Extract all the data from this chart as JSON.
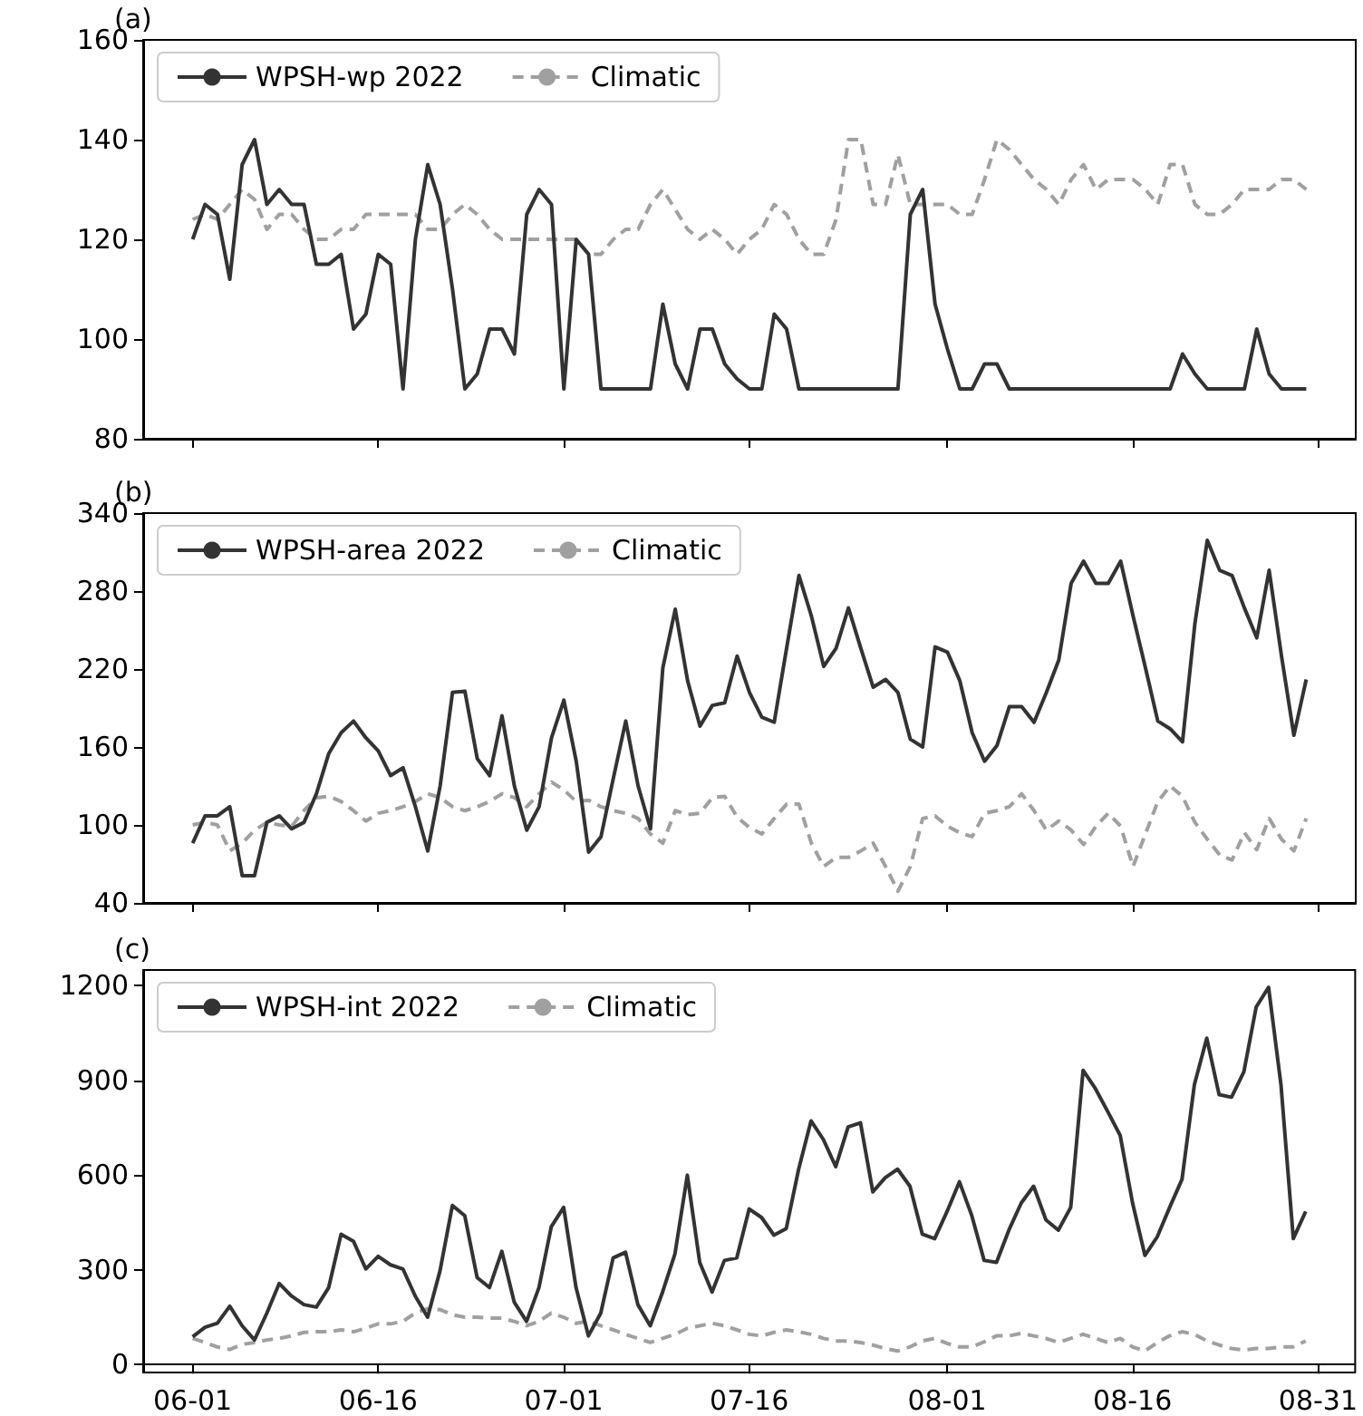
{
  "chart_data": [
    {
      "type": "line",
      "title": "(a)",
      "legend": "top left",
      "tick_labels": "y",
      "x": [
        "--06-01",
        "--06-02",
        "--06-03",
        "--06-04",
        "--06-05",
        "--06-06",
        "--06-07",
        "--06-08",
        "--06-09",
        "--06-10",
        "--06-11",
        "--06-12",
        "--06-13",
        "--06-14",
        "--06-15",
        "--06-16",
        "--06-17",
        "--06-18",
        "--06-19",
        "--06-20",
        "--06-21",
        "--06-22",
        "--06-23",
        "--06-24",
        "--06-25",
        "--06-26",
        "--06-27",
        "--06-28",
        "--06-29",
        "--06-30",
        "--07-01",
        "--07-02",
        "--07-03",
        "--07-04",
        "--07-05",
        "--07-06",
        "--07-07",
        "--07-08",
        "--07-09",
        "--07-10",
        "--07-11",
        "--07-12",
        "--07-13",
        "--07-14",
        "--07-15",
        "--07-16",
        "--07-17",
        "--07-18",
        "--07-19",
        "--07-20",
        "--07-21",
        "--07-22",
        "--07-23",
        "--07-24",
        "--07-25",
        "--07-26",
        "--07-27",
        "--07-28",
        "--07-29",
        "--07-30",
        "--07-31",
        "--08-01",
        "--08-02",
        "--08-03",
        "--08-04",
        "--08-05",
        "--08-06",
        "--08-07",
        "--08-08",
        "--08-09",
        "--08-10",
        "--08-11",
        "--08-12",
        "--08-13",
        "--08-14",
        "--08-15",
        "--08-16",
        "--08-17",
        "--08-18",
        "--08-19",
        "--08-20",
        "--08-21",
        "--08-22",
        "--08-23",
        "--08-24",
        "--08-25",
        "--08-26",
        "--08-27",
        "--08-28",
        "--08-29",
        "--08-30"
      ],
      "xlim": [
        "--05-28",
        "--09-03"
      ],
      "xticks": [
        {
          "value": "--06-01",
          "label": "06-01"
        },
        {
          "value": "--06-16",
          "label": "06-16"
        },
        {
          "value": "--07-01",
          "label": "07-01"
        },
        {
          "value": "--07-16",
          "label": "07-16"
        },
        {
          "value": "--08-01",
          "label": "08-01"
        },
        {
          "value": "--08-16",
          "label": "08-16"
        },
        {
          "value": "--08-31",
          "label": "08-31"
        }
      ],
      "ylim": [
        80,
        160
      ],
      "yticks": [
        80,
        100,
        120,
        140,
        160
      ],
      "series": [
        {
          "name": "WPSH-wp 2022",
          "color": "#333333",
          "line_style": "solid",
          "values": [
            120,
            127,
            125,
            112,
            135,
            140,
            127,
            130,
            127,
            127,
            115,
            115,
            117,
            102,
            105,
            117,
            115,
            90,
            120,
            135,
            127,
            110,
            90,
            93,
            102,
            102,
            97,
            125,
            130,
            127,
            90,
            120,
            117,
            90,
            90,
            90,
            90,
            90,
            107,
            95,
            90,
            102,
            102,
            95,
            92,
            90,
            90,
            105,
            102,
            90,
            90,
            90,
            90,
            90,
            90,
            90,
            90,
            90,
            125,
            130,
            107,
            98,
            90,
            90,
            95,
            95,
            90,
            90,
            90,
            90,
            90,
            90,
            90,
            90,
            90,
            90,
            90,
            90,
            90,
            90,
            97,
            93,
            90,
            90,
            90,
            90,
            102,
            93,
            90,
            90,
            90
          ]
        },
        {
          "name": "Climatic",
          "color": "#a0a0a0",
          "line_style": "dashed",
          "values": [
            124,
            125,
            124,
            127,
            130,
            128,
            122,
            125,
            125,
            122,
            120,
            120,
            122,
            122,
            125,
            125,
            125,
            125,
            125,
            122,
            122,
            125,
            127,
            125,
            122,
            120,
            120,
            120,
            120,
            120,
            120,
            120,
            117,
            117,
            120,
            122,
            122,
            127,
            130,
            126,
            122,
            120,
            122,
            120,
            117,
            120,
            122,
            127,
            125,
            120,
            117,
            117,
            124,
            140,
            140,
            127,
            127,
            137,
            127,
            127,
            127,
            127,
            125,
            125,
            132,
            140,
            138,
            135,
            132,
            130,
            127,
            132,
            135,
            130,
            132,
            132,
            132,
            130,
            127,
            135,
            135,
            127,
            125,
            125,
            127,
            130,
            130,
            130,
            132,
            132,
            130
          ]
        }
      ]
    },
    {
      "type": "line",
      "title": "(b)",
      "legend": "top left",
      "tick_labels": "y",
      "x": [
        "--06-01",
        "--06-02",
        "--06-03",
        "--06-04",
        "--06-05",
        "--06-06",
        "--06-07",
        "--06-08",
        "--06-09",
        "--06-10",
        "--06-11",
        "--06-12",
        "--06-13",
        "--06-14",
        "--06-15",
        "--06-16",
        "--06-17",
        "--06-18",
        "--06-19",
        "--06-20",
        "--06-21",
        "--06-22",
        "--06-23",
        "--06-24",
        "--06-25",
        "--06-26",
        "--06-27",
        "--06-28",
        "--06-29",
        "--06-30",
        "--07-01",
        "--07-02",
        "--07-03",
        "--07-04",
        "--07-05",
        "--07-06",
        "--07-07",
        "--07-08",
        "--07-09",
        "--07-10",
        "--07-11",
        "--07-12",
        "--07-13",
        "--07-14",
        "--07-15",
        "--07-16",
        "--07-17",
        "--07-18",
        "--07-19",
        "--07-20",
        "--07-21",
        "--07-22",
        "--07-23",
        "--07-24",
        "--07-25",
        "--07-26",
        "--07-27",
        "--07-28",
        "--07-29",
        "--07-30",
        "--07-31",
        "--08-01",
        "--08-02",
        "--08-03",
        "--08-04",
        "--08-05",
        "--08-06",
        "--08-07",
        "--08-08",
        "--08-09",
        "--08-10",
        "--08-11",
        "--08-12",
        "--08-13",
        "--08-14",
        "--08-15",
        "--08-16",
        "--08-17",
        "--08-18",
        "--08-19",
        "--08-20",
        "--08-21",
        "--08-22",
        "--08-23",
        "--08-24",
        "--08-25",
        "--08-26",
        "--08-27",
        "--08-28",
        "--08-29",
        "--08-30"
      ],
      "xlim": [
        "--05-28",
        "--09-03"
      ],
      "xticks": [
        {
          "value": "--06-01",
          "label": "06-01"
        },
        {
          "value": "--06-16",
          "label": "06-16"
        },
        {
          "value": "--07-01",
          "label": "07-01"
        },
        {
          "value": "--07-16",
          "label": "07-16"
        },
        {
          "value": "--08-01",
          "label": "08-01"
        },
        {
          "value": "--08-16",
          "label": "08-16"
        },
        {
          "value": "--08-31",
          "label": "08-31"
        }
      ],
      "ylim": [
        40,
        340
      ],
      "yticks": [
        40,
        100,
        160,
        220,
        280,
        340
      ],
      "series": [
        {
          "name": "WPSH-area 2022",
          "color": "#333333",
          "line_style": "solid",
          "values": [
            86,
            107,
            107,
            114,
            61,
            61,
            102,
            107,
            97,
            102,
            124,
            155,
            171,
            180,
            167,
            157,
            138,
            144,
            114,
            80,
            130,
            202,
            203,
            151,
            138,
            184,
            130,
            96,
            114,
            167,
            196,
            149,
            79,
            91,
            136,
            180,
            130,
            97,
            221,
            266,
            211,
            176,
            192,
            194,
            230,
            202,
            183,
            179,
            236,
            292,
            261,
            222,
            236,
            267,
            236,
            206,
            212,
            202,
            166,
            160,
            237,
            233,
            211,
            171,
            149,
            161,
            191,
            191,
            179,
            202,
            227,
            286,
            303,
            286,
            286,
            303,
            261,
            221,
            180,
            174,
            164,
            255,
            319,
            296,
            292,
            267,
            244,
            296,
            230,
            169,
            212
          ]
        },
        {
          "name": "Climatic",
          "color": "#a0a0a0",
          "line_style": "dashed",
          "values": [
            100,
            102,
            100,
            80,
            86,
            96,
            102,
            100,
            99,
            111,
            121,
            122,
            118,
            111,
            103,
            109,
            111,
            114,
            118,
            124,
            121,
            114,
            111,
            114,
            118,
            124,
            121,
            114,
            124,
            133,
            127,
            118,
            119,
            114,
            111,
            109,
            105,
            93,
            86,
            111,
            108,
            109,
            121,
            122,
            106,
            98,
            93,
            105,
            116,
            116,
            86,
            68,
            75,
            75,
            80,
            86,
            68,
            49,
            68,
            105,
            107,
            99,
            94,
            91,
            109,
            111,
            114,
            124,
            111,
            96,
            103,
            96,
            85,
            99,
            109,
            99,
            68,
            93,
            118,
            130,
            122,
            102,
            89,
            77,
            73,
            94,
            81,
            105,
            89,
            80,
            105
          ]
        }
      ]
    },
    {
      "type": "line",
      "title": "(c)",
      "legend": "top left",
      "x": [
        "--06-01",
        "--06-02",
        "--06-03",
        "--06-04",
        "--06-05",
        "--06-06",
        "--06-07",
        "--06-08",
        "--06-09",
        "--06-10",
        "--06-11",
        "--06-12",
        "--06-13",
        "--06-14",
        "--06-15",
        "--06-16",
        "--06-17",
        "--06-18",
        "--06-19",
        "--06-20",
        "--06-21",
        "--06-22",
        "--06-23",
        "--06-24",
        "--06-25",
        "--06-26",
        "--06-27",
        "--06-28",
        "--06-29",
        "--06-30",
        "--07-01",
        "--07-02",
        "--07-03",
        "--07-04",
        "--07-05",
        "--07-06",
        "--07-07",
        "--07-08",
        "--07-09",
        "--07-10",
        "--07-11",
        "--07-12",
        "--07-13",
        "--07-14",
        "--07-15",
        "--07-16",
        "--07-17",
        "--07-18",
        "--07-19",
        "--07-20",
        "--07-21",
        "--07-22",
        "--07-23",
        "--07-24",
        "--07-25",
        "--07-26",
        "--07-27",
        "--07-28",
        "--07-29",
        "--07-30",
        "--07-31",
        "--08-01",
        "--08-02",
        "--08-03",
        "--08-04",
        "--08-05",
        "--08-06",
        "--08-07",
        "--08-08",
        "--08-09",
        "--08-10",
        "--08-11",
        "--08-12",
        "--08-13",
        "--08-14",
        "--08-15",
        "--08-16",
        "--08-17",
        "--08-18",
        "--08-19",
        "--08-20",
        "--08-21",
        "--08-22",
        "--08-23",
        "--08-24",
        "--08-25",
        "--08-26",
        "--08-27",
        "--08-28",
        "--08-29",
        "--08-30"
      ],
      "xlim": [
        "--05-28",
        "--09-03"
      ],
      "xticks": [
        {
          "value": "--06-01",
          "label": "06-01"
        },
        {
          "value": "--06-16",
          "label": "06-16"
        },
        {
          "value": "--07-01",
          "label": "07-01"
        },
        {
          "value": "--07-16",
          "label": "07-16"
        },
        {
          "value": "--08-01",
          "label": "08-01"
        },
        {
          "value": "--08-16",
          "label": "08-16"
        },
        {
          "value": "--08-31",
          "label": "08-31"
        }
      ],
      "ylim": [
        -25,
        1250
      ],
      "yticks": [
        0,
        300,
        600,
        900,
        1200
      ],
      "series": [
        {
          "name": "WPSH-int 2022",
          "color": "#333333",
          "line_style": "solid",
          "values": [
            88,
            118,
            131,
            185,
            123,
            78,
            163,
            257,
            217,
            190,
            182,
            244,
            413,
            391,
            303,
            343,
            316,
            303,
            217,
            150,
            297,
            504,
            472,
            276,
            244,
            359,
            198,
            137,
            244,
            437,
            498,
            244,
            91,
            163,
            338,
            356,
            190,
            123,
            230,
            351,
            600,
            324,
            230,
            330,
            338,
            493,
            466,
            410,
            431,
            619,
            772,
            713,
            627,
            753,
            766,
            547,
            592,
            619,
            565,
            413,
            399,
            485,
            579,
            472,
            330,
            324,
            426,
            512,
            565,
            458,
            426,
            498,
            932,
            874,
            801,
            726,
            512,
            346,
            405,
            498,
            587,
            887,
            1034,
            855,
            847,
            927,
            1133,
            1195,
            887,
            399,
            485
          ]
        },
        {
          "name": "Climatic",
          "color": "#a0a0a0",
          "line_style": "dashed",
          "values": [
            83,
            70,
            56,
            48,
            64,
            70,
            78,
            83,
            91,
            102,
            104,
            104,
            110,
            104,
            115,
            129,
            129,
            137,
            163,
            177,
            174,
            158,
            150,
            150,
            147,
            147,
            137,
            123,
            137,
            163,
            150,
            131,
            137,
            123,
            110,
            96,
            83,
            70,
            83,
            96,
            115,
            123,
            131,
            123,
            110,
            96,
            91,
            102,
            110,
            104,
            96,
            83,
            75,
            75,
            70,
            62,
            51,
            43,
            56,
            75,
            83,
            67,
            56,
            56,
            72,
            91,
            91,
            99,
            91,
            83,
            70,
            83,
            96,
            83,
            70,
            83,
            56,
            43,
            70,
            91,
            104,
            96,
            75,
            62,
            51,
            46,
            51,
            51,
            56,
            56,
            75
          ]
        }
      ]
    }
  ]
}
